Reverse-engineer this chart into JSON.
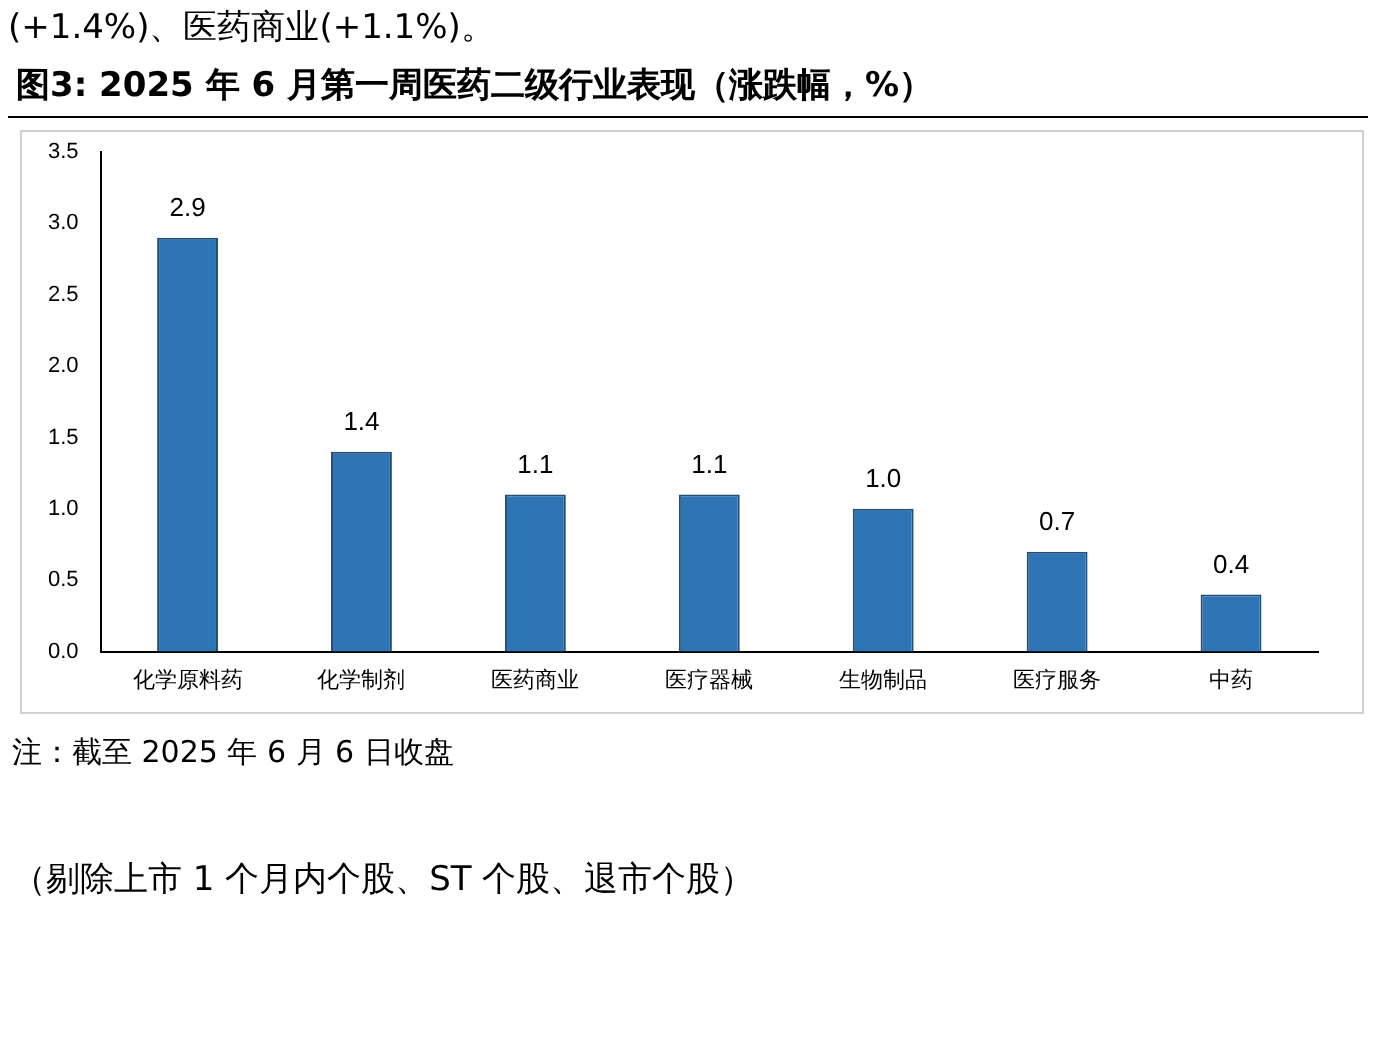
{
  "chart_data": {
    "type": "bar",
    "title": "图3:  2025 年 6 月第一周医药二级行业表现（涨跌幅，%）",
    "categories": [
      "化学原料药",
      "化学制剂",
      "医药商业",
      "医疗器械",
      "生物制品",
      "医疗服务",
      "中药"
    ],
    "values": [
      2.9,
      1.4,
      1.1,
      1.1,
      1.0,
      0.7,
      0.4
    ],
    "value_labels": [
      "2.9",
      "1.4",
      "1.1",
      "1.1",
      "1.0",
      "0.7",
      "0.4"
    ],
    "color": "#2e75b6",
    "grid": false,
    "legend": false,
    "ylim": [
      0,
      3.5
    ],
    "yticks": [
      {
        "value": 0,
        "label": "0.0"
      },
      {
        "value": 0.5,
        "label": "0.5"
      },
      {
        "value": 1,
        "label": "1.0"
      },
      {
        "value": 1.5,
        "label": "1.5"
      },
      {
        "value": 2,
        "label": "2.0"
      },
      {
        "value": 2.5,
        "label": "2.5"
      },
      {
        "value": 3,
        "label": "3.0"
      },
      {
        "value": 3.5,
        "label": "3.5"
      }
    ],
    "annotations": [
      "(+1.4%)、医药商业(+1.1%)。",
      "注：截至 2025 年 6 月 6 日收盘",
      "（剔除上市 1 个月内个股、ST 个股、退市个股）"
    ]
  }
}
